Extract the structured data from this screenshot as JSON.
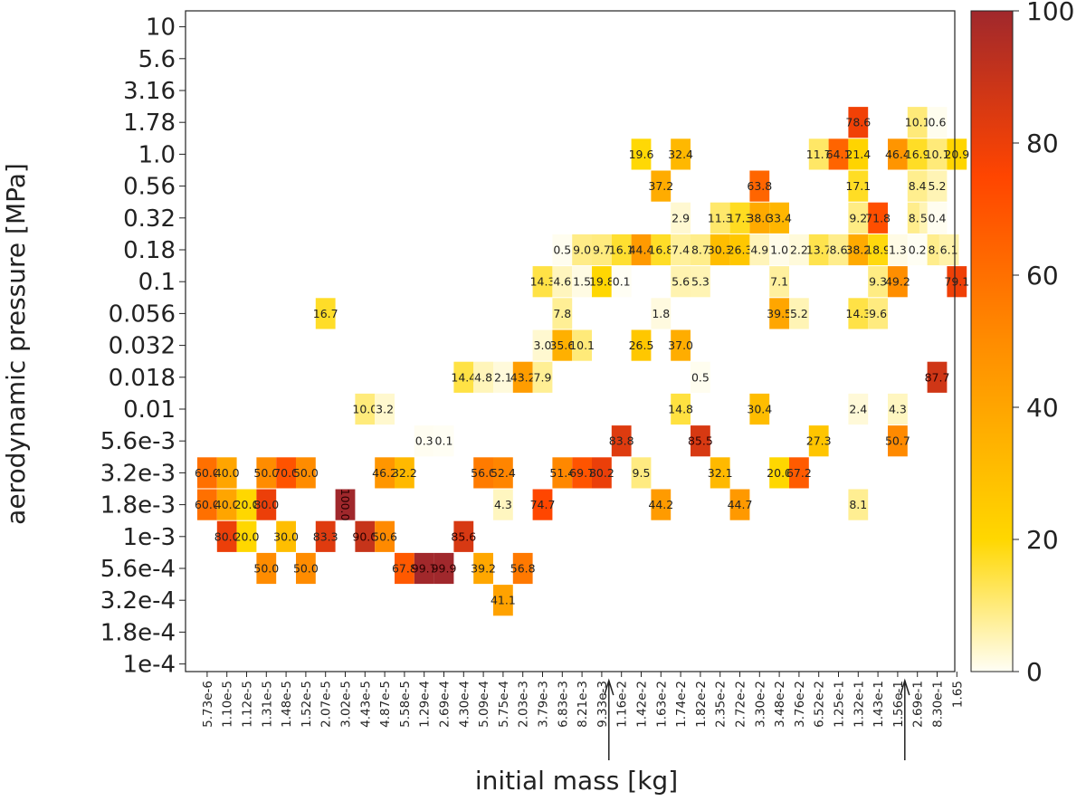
{
  "chart_data": {
    "type": "heatmap",
    "xlabel": "initial mass [kg]",
    "ylabel": "aerodynamic pressure [MPa]",
    "x_categories": [
      "5.73e-6",
      "1.10e-5",
      "1.12e-5",
      "1.31e-5",
      "1.48e-5",
      "1.52e-5",
      "2.07e-5",
      "3.02e-5",
      "4.43e-5",
      "4.87e-5",
      "5.58e-5",
      "1.29e-4",
      "2.69e-4",
      "4.30e-4",
      "5.09e-4",
      "5.75e-4",
      "2.03e-3",
      "3.79e-3",
      "6.83e-3",
      "8.21e-3",
      "9.33e-3",
      "1.16e-2",
      "1.42e-2",
      "1.63e-2",
      "1.74e-2",
      "1.82e-2",
      "2.35e-2",
      "2.72e-2",
      "3.30e-2",
      "3.48e-2",
      "3.76e-2",
      "6.52e-2",
      "1.25e-1",
      "1.32e-1",
      "1.43e-1",
      "1.56e-1",
      "2.69e-1",
      "8.30e-1",
      "1.65"
    ],
    "y_categories": [
      "10",
      "5.6",
      "3.16",
      "1.78",
      "1.0",
      "0.56",
      "0.32",
      "0.18",
      "0.1",
      "0.056",
      "0.032",
      "0.018",
      "0.01",
      "5.6e-3",
      "3.2e-3",
      "1.8e-3",
      "1e-3",
      "5.6e-4",
      "3.2e-4",
      "1.8e-4",
      "1e-4"
    ],
    "colorbar": {
      "min": 0,
      "max": 100,
      "ticks": [
        "0",
        "20",
        "40",
        "60",
        "80",
        "100"
      ]
    },
    "arrow_markers": [
      "9.33e-3",
      "1.56e-1"
    ],
    "cells": [
      [
        0,
        14,
        60.0
      ],
      [
        1,
        14,
        40.0
      ],
      [
        3,
        14,
        50.0
      ],
      [
        4,
        14,
        70.0
      ],
      [
        5,
        14,
        50.0
      ],
      [
        9,
        14,
        46.2
      ],
      [
        10,
        14,
        32.2
      ],
      [
        14,
        14,
        56.0
      ],
      [
        15,
        14,
        52.4
      ],
      [
        18,
        14,
        51.4
      ],
      [
        19,
        14,
        69.7
      ],
      [
        20,
        14,
        80.2
      ],
      [
        22,
        14,
        9.5
      ],
      [
        26,
        14,
        32.1
      ],
      [
        29,
        14,
        20.0
      ],
      [
        30,
        14,
        67.2
      ],
      [
        0,
        15,
        60.0
      ],
      [
        1,
        15,
        40.0
      ],
      [
        2,
        15,
        20.0
      ],
      [
        3,
        15,
        80.0
      ],
      [
        7,
        15,
        100.0
      ],
      [
        15,
        15,
        4.3
      ],
      [
        17,
        15,
        74.7
      ],
      [
        23,
        15,
        44.2
      ],
      [
        27,
        15,
        44.7
      ],
      [
        33,
        15,
        8.1
      ],
      [
        1,
        16,
        80.0
      ],
      [
        2,
        16,
        20.0
      ],
      [
        4,
        16,
        30.0
      ],
      [
        6,
        16,
        83.3
      ],
      [
        8,
        16,
        90.0
      ],
      [
        9,
        16,
        50.6
      ],
      [
        13,
        16,
        85.6
      ],
      [
        3,
        17,
        50.0
      ],
      [
        5,
        17,
        50.0
      ],
      [
        10,
        17,
        67.8
      ],
      [
        11,
        17,
        99.7
      ],
      [
        12,
        17,
        99.9
      ],
      [
        14,
        17,
        39.2
      ],
      [
        16,
        17,
        56.8
      ],
      [
        15,
        18,
        41.1
      ],
      [
        11,
        13,
        0.3
      ],
      [
        12,
        13,
        0.1
      ],
      [
        21,
        13,
        83.8
      ],
      [
        25,
        13,
        85.5
      ],
      [
        31,
        13,
        27.3
      ],
      [
        35,
        13,
        50.7
      ],
      [
        8,
        12,
        10.0
      ],
      [
        9,
        12,
        3.2
      ],
      [
        24,
        12,
        14.8
      ],
      [
        28,
        12,
        30.4
      ],
      [
        33,
        12,
        2.4
      ],
      [
        35,
        12,
        4.3
      ],
      [
        13,
        11,
        14.4
      ],
      [
        14,
        11,
        4.8
      ],
      [
        15,
        11,
        2.1
      ],
      [
        16,
        11,
        43.2
      ],
      [
        17,
        11,
        7.9
      ],
      [
        25,
        11,
        0.5
      ],
      [
        37,
        11,
        87.7
      ],
      [
        17,
        10,
        3.0
      ],
      [
        18,
        10,
        35.6
      ],
      [
        19,
        10,
        10.1
      ],
      [
        22,
        10,
        26.5
      ],
      [
        24,
        10,
        37.0
      ],
      [
        6,
        9,
        16.7
      ],
      [
        18,
        9,
        7.8
      ],
      [
        23,
        9,
        1.8
      ],
      [
        29,
        9,
        39.5
      ],
      [
        30,
        9,
        5.2
      ],
      [
        33,
        9,
        14.3
      ],
      [
        34,
        9,
        9.6
      ],
      [
        17,
        8,
        14.3
      ],
      [
        18,
        8,
        4.6
      ],
      [
        19,
        8,
        1.5
      ],
      [
        20,
        8,
        19.8
      ],
      [
        21,
        8,
        0.1
      ],
      [
        24,
        8,
        5.6
      ],
      [
        25,
        8,
        5.3
      ],
      [
        29,
        8,
        7.1
      ],
      [
        34,
        8,
        9.3
      ],
      [
        35,
        8,
        49.2
      ],
      [
        38,
        8,
        79.1
      ],
      [
        18,
        7,
        0.5
      ],
      [
        19,
        7,
        9.0
      ],
      [
        20,
        7,
        9.7
      ],
      [
        21,
        7,
        16.1
      ],
      [
        22,
        7,
        44.4
      ],
      [
        23,
        7,
        16.8
      ],
      [
        24,
        7,
        7.4
      ],
      [
        25,
        7,
        8.7
      ],
      [
        26,
        7,
        30.3
      ],
      [
        27,
        7,
        26.3
      ],
      [
        28,
        7,
        4.9
      ],
      [
        29,
        7,
        1.0
      ],
      [
        30,
        7,
        2.2
      ],
      [
        31,
        7,
        13.7
      ],
      [
        32,
        7,
        8.6
      ],
      [
        33,
        7,
        38.2
      ],
      [
        34,
        7,
        18.9
      ],
      [
        35,
        7,
        1.3
      ],
      [
        36,
        7,
        0.2
      ],
      [
        37,
        7,
        8.6
      ],
      [
        37.6,
        7,
        6.1
      ],
      [
        24,
        6,
        2.9
      ],
      [
        26,
        6,
        11.3
      ],
      [
        27,
        6,
        17.3
      ],
      [
        28,
        6,
        38.0
      ],
      [
        29,
        6,
        33.4
      ],
      [
        33,
        6,
        9.2
      ],
      [
        34,
        6,
        71.8
      ],
      [
        36,
        6,
        8.6
      ],
      [
        36.6,
        6,
        5.3
      ],
      [
        37,
        6,
        0.4
      ],
      [
        23,
        5,
        37.2
      ],
      [
        28,
        5,
        63.8
      ],
      [
        33,
        5,
        17.1
      ],
      [
        36,
        5,
        8.4
      ],
      [
        37,
        5,
        5.2
      ],
      [
        22,
        4,
        19.6
      ],
      [
        24,
        4,
        32.4
      ],
      [
        31,
        4,
        11.7
      ],
      [
        32,
        4,
        64.1
      ],
      [
        33,
        4,
        21.4
      ],
      [
        35,
        4,
        46.4
      ],
      [
        36,
        4,
        16.9
      ],
      [
        37,
        4,
        10.1
      ],
      [
        38,
        4,
        20.9
      ],
      [
        33,
        3,
        78.6
      ],
      [
        36,
        3,
        10.1
      ],
      [
        37,
        3,
        0.6
      ]
    ]
  }
}
